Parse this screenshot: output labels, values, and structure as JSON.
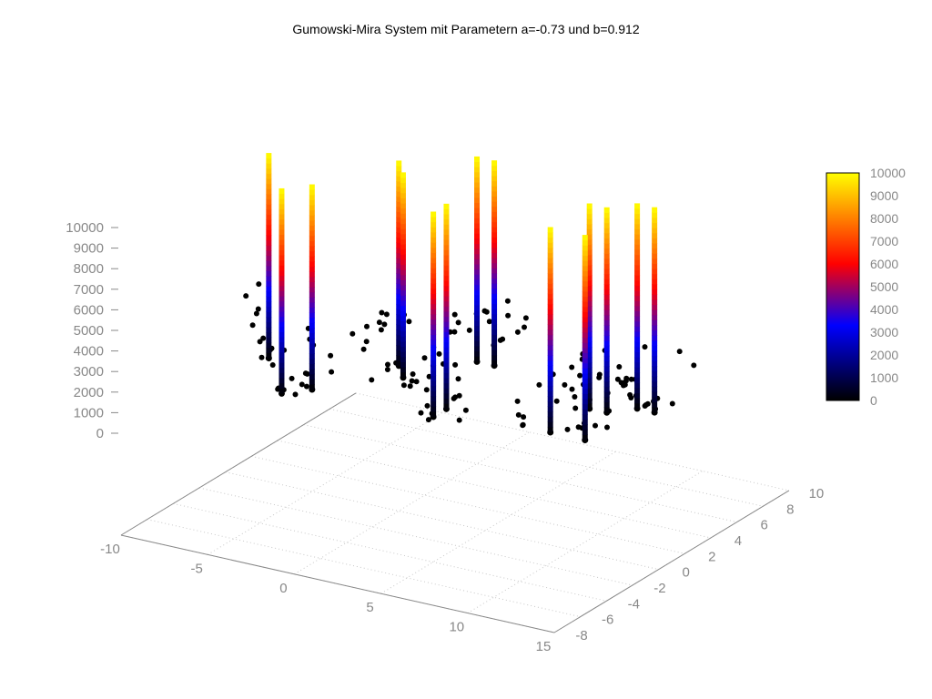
{
  "chart_data": {
    "type": "scatter3d",
    "title": "Gumowski-Mira System mit Parametern a=-0.73 und b=0.912",
    "x_ticks": [
      "-10",
      "-5",
      "0",
      "5",
      "10",
      "15"
    ],
    "y_ticks": [
      "-8",
      "-6",
      "-4",
      "-2",
      "0",
      "2",
      "4",
      "6",
      "8",
      "10"
    ],
    "z_ticks": [
      "0",
      "1000",
      "2000",
      "3000",
      "4000",
      "5000",
      "6000",
      "7000",
      "8000",
      "9000",
      "10000"
    ],
    "colorbar_ticks": [
      "0",
      "1000",
      "2000",
      "3000",
      "4000",
      "5000",
      "6000",
      "7000",
      "8000",
      "9000",
      "10000"
    ],
    "xlim": [
      -10,
      15
    ],
    "ylim": [
      -8,
      10
    ],
    "zlim": [
      0,
      10000
    ],
    "grid": true,
    "colorbar": "right",
    "colormap": [
      "#000000",
      "#0000ff",
      "#ff0000",
      "#ffff00"
    ],
    "spike_height": 10000,
    "clusters": [
      {
        "x": -9.0,
        "y": 2.0
      },
      {
        "x": -6.0,
        "y": -1.0
      },
      {
        "x": -5.0,
        "y": 0.0
      },
      {
        "x": -3.0,
        "y": 4.0
      },
      {
        "x": -2.0,
        "y": 3.0
      },
      {
        "x": 0.0,
        "y": 6.0
      },
      {
        "x": 1.0,
        "y": 6.0
      },
      {
        "x": 2.0,
        "y": 0.0
      },
      {
        "x": 2.0,
        "y": 1.0
      },
      {
        "x": 8.0,
        "y": 4.0
      },
      {
        "x": 9.0,
        "y": 4.0
      },
      {
        "x": 10.0,
        "y": 5.0
      },
      {
        "x": 11.0,
        "y": 5.0
      },
      {
        "x": 8.0,
        "y": 1.0
      },
      {
        "x": 10.0,
        "y": 1.0
      }
    ]
  }
}
